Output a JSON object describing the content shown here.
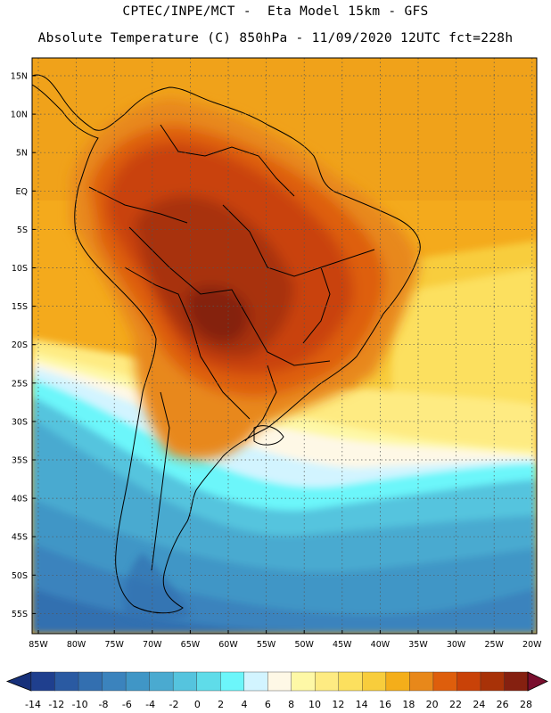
{
  "header": {
    "line1": "CPTEC/INPE/MCT -  Eta Model 15km - GFS",
    "line2": "Absolute Temperature (C) 850hPa - 11/09/2020 12UTC fct=228h"
  },
  "map": {
    "lat_ticks": [
      "15N",
      "10N",
      "5N",
      "EQ",
      "5S",
      "10S",
      "15S",
      "20S",
      "25S",
      "30S",
      "35S",
      "40S",
      "45S",
      "50S",
      "55S"
    ],
    "lon_ticks": [
      "85W",
      "80W",
      "75W",
      "70W",
      "65W",
      "60W",
      "55W",
      "50W",
      "45W",
      "40W",
      "35W",
      "30W",
      "25W",
      "20W"
    ],
    "grid": "dotted",
    "ocean_color": "#f4aa1c"
  },
  "colorbar": {
    "labels": [
      "-14",
      "-12",
      "-10",
      "-8",
      "-6",
      "-4",
      "-2",
      "0",
      "2",
      "4",
      "6",
      "8",
      "10",
      "12",
      "14",
      "16",
      "18",
      "20",
      "22",
      "24",
      "26",
      "28"
    ],
    "colors": [
      "#1f3f8e",
      "#2a5aa2",
      "#336fb0",
      "#3b83bd",
      "#4096c6",
      "#4aaad0",
      "#55c4de",
      "#5fdce9",
      "#6cf6fa",
      "#d2f4ff",
      "#fef8e6",
      "#fef8a6",
      "#feeb82",
      "#fce05e",
      "#f8cd3c",
      "#f4ae1a",
      "#e8881a",
      "#de5e0c",
      "#c94208",
      "#a83208",
      "#852010"
    ],
    "under_color": "#16307a",
    "over_color": "#7a0f2e"
  }
}
